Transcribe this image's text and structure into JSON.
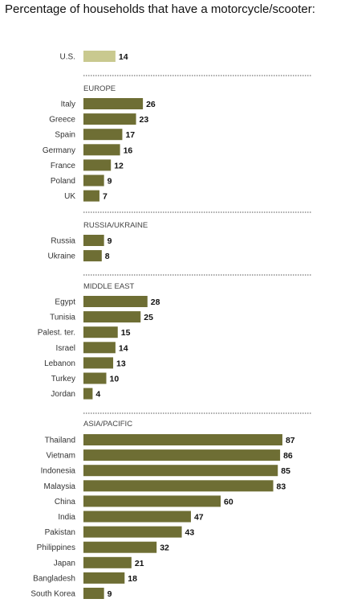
{
  "chart_data": {
    "type": "bar",
    "orientation": "horizontal",
    "title": "Percentage of households that have a motorcycle/scooter:",
    "xlim": [
      0,
      100
    ],
    "grid": false,
    "colors": {
      "highlight": "#c9c98f",
      "bar": "#6e6e34",
      "divider": "#555555"
    },
    "groups": [
      {
        "name": "",
        "highlight": true,
        "categories": [
          "U.S."
        ],
        "values": [
          14
        ]
      },
      {
        "name": "EUROPE",
        "categories": [
          "Italy",
          "Greece",
          "Spain",
          "Germany",
          "France",
          "Poland",
          "UK"
        ],
        "values": [
          26,
          23,
          17,
          16,
          12,
          9,
          7
        ]
      },
      {
        "name": "RUSSIA/UKRAINE",
        "categories": [
          "Russia",
          "Ukraine"
        ],
        "values": [
          9,
          8
        ]
      },
      {
        "name": "MIDDLE EAST",
        "categories": [
          "Egypt",
          "Tunisia",
          "Palest. ter.",
          "Israel",
          "Lebanon",
          "Turkey",
          "Jordan"
        ],
        "values": [
          28,
          25,
          15,
          14,
          13,
          10,
          4
        ]
      },
      {
        "name": "ASIA/PACIFIC",
        "categories": [
          "Thailand",
          "Vietnam",
          "Indonesia",
          "Malaysia",
          "China",
          "India",
          "Pakistan",
          "Philippines",
          "Japan",
          "Bangladesh",
          "South Korea"
        ],
        "values": [
          87,
          86,
          85,
          83,
          60,
          47,
          43,
          32,
          21,
          18,
          9
        ]
      }
    ]
  }
}
